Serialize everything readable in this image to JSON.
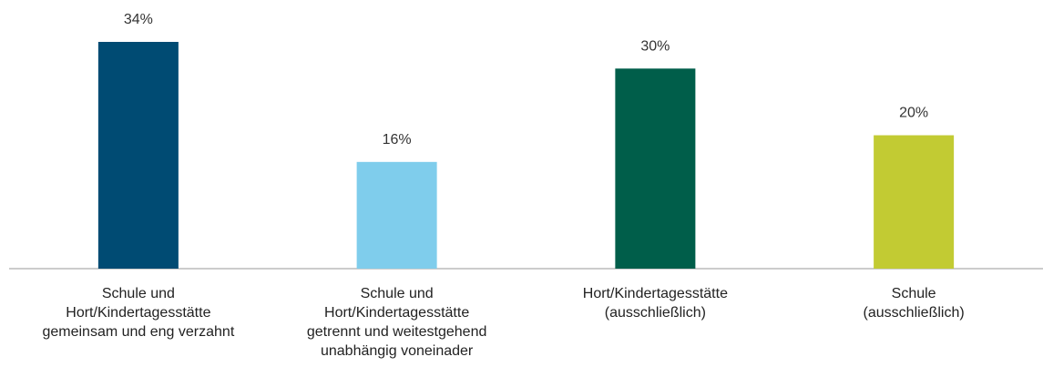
{
  "chart_data": {
    "type": "bar",
    "categories": [
      "Schule und\nHort/Kindertagesstätte\ngemeinsam und eng verzahnt",
      "Schule und\nHort/Kindertagesstätte\ngetrennt und weitestgehend\nunabhängig voneinader",
      "Hort/Kindertagesstätte\n(ausschließlich)",
      "Schule\n(ausschließlich)"
    ],
    "values": [
      34,
      16,
      30,
      20
    ],
    "value_labels": [
      "34%",
      "16%",
      "30%",
      "20%"
    ],
    "colors": [
      "#004b73",
      "#7fcdec",
      "#005e4a",
      "#c2cb33"
    ]
  }
}
